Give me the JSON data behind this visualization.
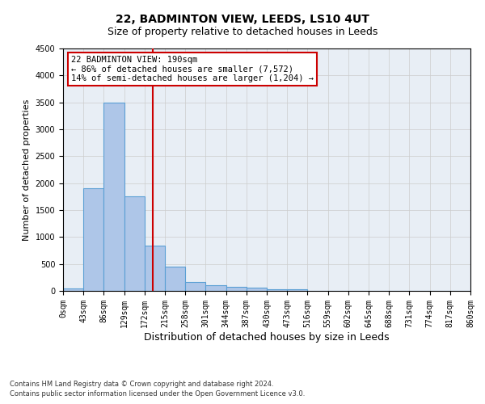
{
  "title": "22, BADMINTON VIEW, LEEDS, LS10 4UT",
  "subtitle": "Size of property relative to detached houses in Leeds",
  "xlabel": "Distribution of detached houses by size in Leeds",
  "ylabel": "Number of detached properties",
  "annotation_title": "22 BADMINTON VIEW: 190sqm",
  "annotation_line1": "← 86% of detached houses are smaller (7,572)",
  "annotation_line2": "14% of semi-detached houses are larger (1,204) →",
  "footnote1": "Contains HM Land Registry data © Crown copyright and database right 2024.",
  "footnote2": "Contains public sector information licensed under the Open Government Licence v3.0.",
  "property_size": 190,
  "bar_edges": [
    0,
    43,
    86,
    129,
    172,
    215,
    258,
    301,
    344,
    387,
    430,
    473,
    516,
    559,
    602,
    645,
    688,
    731,
    774,
    817,
    860
  ],
  "bar_heights": [
    50,
    1910,
    3490,
    1760,
    840,
    450,
    160,
    100,
    70,
    55,
    35,
    30,
    0,
    0,
    0,
    0,
    0,
    0,
    0,
    0
  ],
  "bar_color": "#aec6e8",
  "bar_edge_color": "#5a9fd4",
  "vline_color": "#cc0000",
  "vline_x": 190,
  "ylim": [
    0,
    4500
  ],
  "yticks": [
    0,
    500,
    1000,
    1500,
    2000,
    2500,
    3000,
    3500,
    4000,
    4500
  ],
  "grid_color": "#cccccc",
  "bg_color": "#e8eef5",
  "annotation_box_color": "#cc0000",
  "title_fontsize": 10,
  "subtitle_fontsize": 9,
  "axis_label_fontsize": 8,
  "tick_fontsize": 7,
  "annotation_fontsize": 7.5
}
